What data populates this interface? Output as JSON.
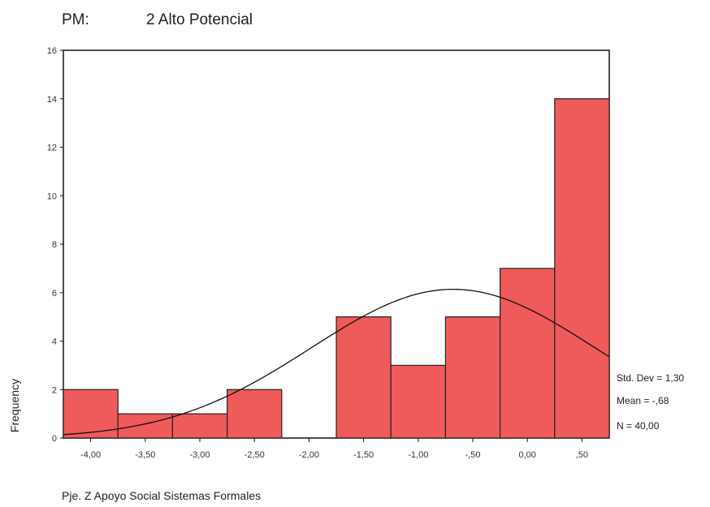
{
  "header": {
    "pm_label": "PM:",
    "group": "2  Alto Potencial"
  },
  "footer": {
    "variable": "Pje. Z Apoyo Social Sistemas Formales"
  },
  "colors": {
    "bar_fill": "#ef5a5a",
    "bar_stroke": "#222222",
    "curve": "#111111",
    "frame": "#111111"
  },
  "chart_data": {
    "type": "bar",
    "subtype": "histogram",
    "categories": [
      "-4,00",
      "-3,50",
      "-3,00",
      "-2,50",
      "-2,00",
      "-1,50",
      "-1,00",
      "-,50",
      "0,00",
      ",50"
    ],
    "x": [
      -4.0,
      -3.5,
      -3.0,
      -2.5,
      -2.0,
      -1.5,
      -1.0,
      -0.5,
      0.0,
      0.5
    ],
    "values": [
      2,
      1,
      1,
      2,
      0,
      5,
      3,
      5,
      7,
      14
    ],
    "bin_width": 0.5,
    "ylabel": "Frequency",
    "ylim": [
      0,
      16
    ],
    "yticks": [
      "0",
      "2",
      "4",
      "6",
      "8",
      "10",
      "12",
      "14",
      "16"
    ],
    "xlim": [
      -4.25,
      0.75
    ],
    "normal_curve": {
      "mean": -0.68,
      "std_dev": 1.3,
      "n": 40
    },
    "stats": {
      "std_dev_label": "Std. Dev = 1,30",
      "mean_label": "Mean = -,68",
      "n_label": "N = 40,00"
    },
    "grid": false,
    "legend": "none"
  }
}
